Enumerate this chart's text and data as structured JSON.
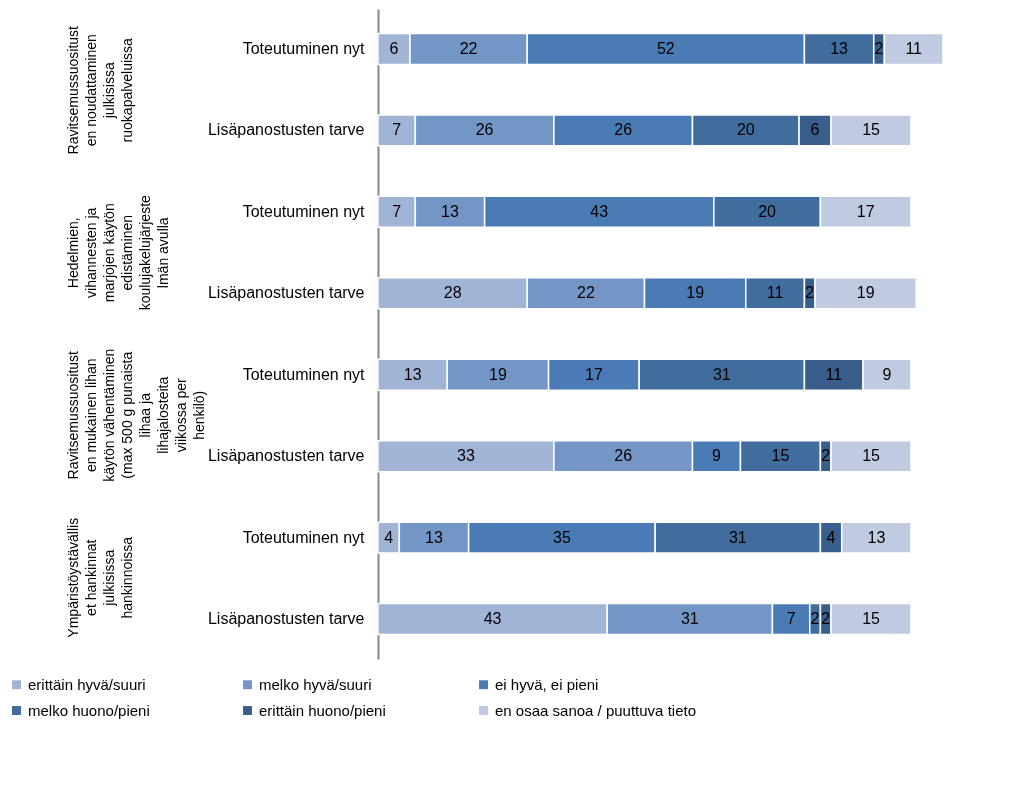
{
  "chart_data": {
    "type": "bar",
    "orientation": "horizontal",
    "stacked": true,
    "data_labels": true,
    "legend": "bottom",
    "tick_labels": "y",
    "categories": [
      "Toteutuminen nyt",
      "Lisäpanostusten tarve",
      "Toteutuminen nyt",
      "Lisäpanostusten tarve",
      "Toteutuminen nyt",
      "Lisäpanostusten tarve",
      "Toteutuminen nyt",
      "Lisäpanostusten tarve"
    ],
    "annotations": [
      "Ravitsemussuositusten noudattaminen julkisissa ruokapalveluissa",
      "Hedelmien, vihannesten ja marjojen käytön edistäminen koulujakelujärjestelmän avulla",
      "Ravitsemussuositusten mukainen lihan käytön vähentäminen (max 500 g punaista lihaa ja lihajalosteita viikossa per henkilö)",
      "Ympäristöystävälliset hankinnat julkisissa hankinnoissa"
    ],
    "series": [
      {
        "name": "erittäin hyvä/suuri",
        "color": "#a2b4d6",
        "values": [
          6,
          7,
          7,
          28,
          13,
          33,
          4,
          43
        ]
      },
      {
        "name": "melko hyvä/suuri",
        "color": "#7496c6",
        "values": [
          22,
          26,
          13,
          22,
          19,
          26,
          13,
          31
        ]
      },
      {
        "name": "ei hyvä, ei pieni",
        "color": "#4a7bb5",
        "values": [
          52,
          26,
          43,
          19,
          17,
          9,
          35,
          7
        ]
      },
      {
        "name": "melko huono/pieni",
        "color": "#416c9e",
        "values": [
          13,
          20,
          20,
          11,
          31,
          15,
          31,
          2
        ]
      },
      {
        "name": "erittäin huono/pieni",
        "color": "#3a5e8c",
        "values": [
          2,
          6,
          null,
          2,
          11,
          2,
          4,
          2
        ]
      },
      {
        "name": "en osaa sanoa / puuttuva tieto",
        "color": "#c0cbe1",
        "values": [
          11,
          15,
          17,
          19,
          9,
          15,
          13,
          15
        ]
      }
    ]
  }
}
